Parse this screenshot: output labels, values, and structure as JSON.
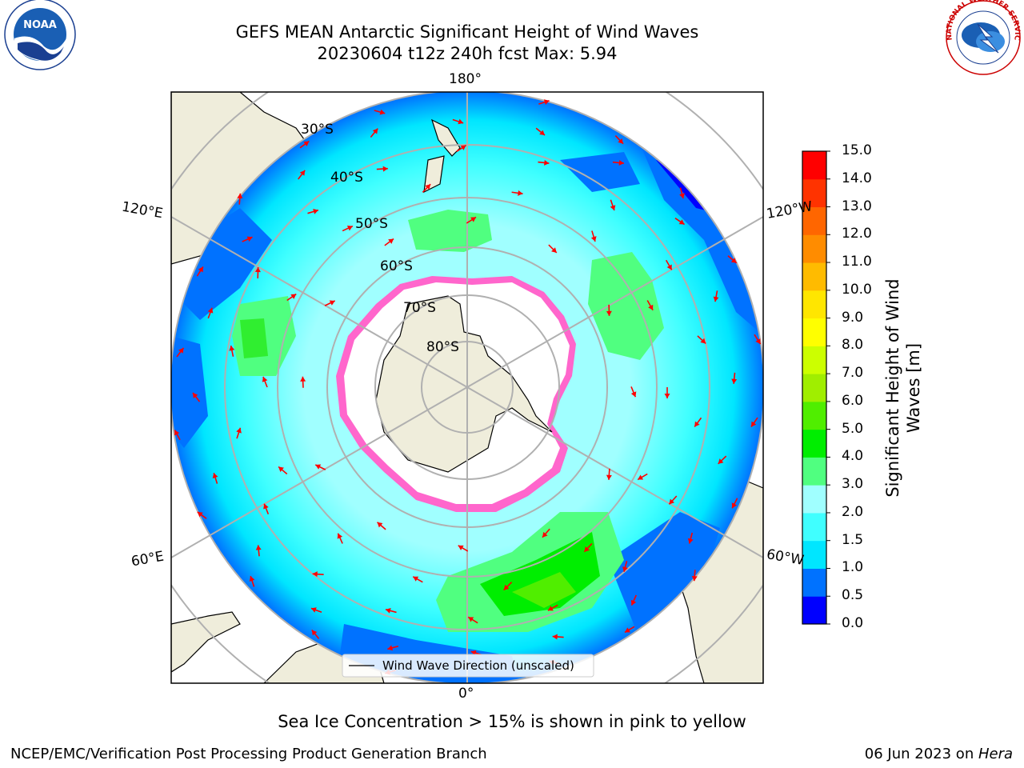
{
  "title": {
    "line1": "GEFS MEAN Antarctic Significant Height of Wind Waves",
    "line2": "20230604 t12z 240h fcst   Max: 5.94"
  },
  "map": {
    "projection": "south-polar-stereographic",
    "longitude_labels": {
      "top": "180°",
      "bottom": "0°",
      "upper_left": "120°E",
      "upper_right": "120°W",
      "lower_left": "60°E",
      "lower_right": "60°W"
    },
    "latitude_labels": [
      "30°S",
      "40°S",
      "50°S",
      "60°S",
      "70°S",
      "80°S"
    ],
    "legend": "Wind Wave Direction (unscaled)",
    "land_color": "#efeddb",
    "arrow_color": "#ff0000",
    "grid_color": "#b0b0b0"
  },
  "colorbar": {
    "title": "Significant Height of Wind Waves [m]",
    "ticks": [
      "0.0",
      "0.5",
      "1.0",
      "1.5",
      "2.0",
      "3.0",
      "4.0",
      "5.0",
      "6.0",
      "7.0",
      "8.0",
      "9.0",
      "10.0",
      "11.0",
      "12.0",
      "13.0",
      "14.0",
      "15.0"
    ],
    "colors": [
      "#0000ff",
      "#0072ff",
      "#00e6ff",
      "#40ffff",
      "#a0ffff",
      "#50ff80",
      "#00ee00",
      "#50ee00",
      "#a0ee00",
      "#ccff00",
      "#ffff00",
      "#ffe600",
      "#ffbb00",
      "#ff8c00",
      "#ff6600",
      "#ff3300",
      "#ff0000"
    ]
  },
  "caption": "Sea Ice Concentration > 15% is shown in pink to yellow",
  "footer": {
    "left": "NCEP/EMC/Verification Post Processing Product Generation Branch",
    "right_date": "06 Jun 2023 on ",
    "right_host": "Hera"
  },
  "logos": {
    "noaa": "NOAA",
    "noaa_ring": "NATIONAL OCEANIC AND ATMOSPHERIC ADMINISTRATION · U.S. DEPARTMENT OF COMMERCE",
    "nws_ring": "NATIONAL WEATHER SERVICE"
  }
}
